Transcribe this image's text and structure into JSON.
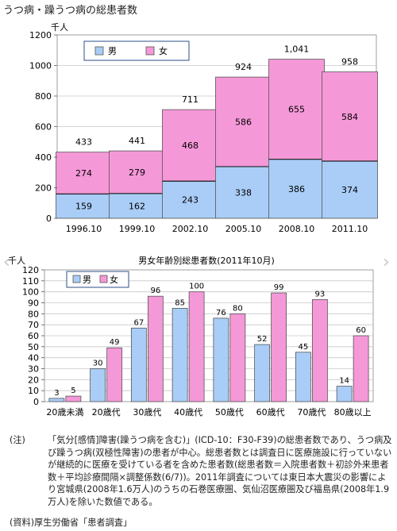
{
  "page_title": "うつ病・躁うつ病の総患者数",
  "chart_data": [
    {
      "type": "bar",
      "stacked": true,
      "title": "",
      "unit_label": "千人",
      "categories": [
        "1996.10",
        "1999.10",
        "2002.10",
        "2005.10",
        "2008.10",
        "2011.10"
      ],
      "series": [
        {
          "name": "男",
          "values": [
            159,
            162,
            243,
            338,
            386,
            374
          ],
          "color": "#a9cdf6"
        },
        {
          "name": "女",
          "values": [
            274,
            279,
            468,
            586,
            655,
            584
          ],
          "color": "#f598d8"
        }
      ],
      "totals": [
        "433",
        "441",
        "711",
        "924",
        "1,041",
        "958"
      ],
      "ylim": [
        0,
        1200
      ],
      "yticks": [
        0,
        200,
        400,
        600,
        800,
        1000,
        1200
      ],
      "grid": true,
      "legend": "top-left"
    },
    {
      "type": "bar",
      "stacked": false,
      "title": "男女年齢別総患者数(2011年10月)",
      "unit_label": "千人",
      "categories": [
        "20歳未満",
        "20歳代",
        "30歳代",
        "40歳代",
        "50歳代",
        "60歳代",
        "70歳代",
        "80歳以上"
      ],
      "series": [
        {
          "name": "男",
          "values": [
            3,
            30,
            67,
            85,
            76,
            52,
            45,
            14
          ],
          "color": "#a9cdf6"
        },
        {
          "name": "女",
          "values": [
            5,
            49,
            96,
            100,
            80,
            99,
            93,
            60
          ],
          "color": "#f598d8"
        }
      ],
      "ylim": [
        0,
        120
      ],
      "yticks": [
        0,
        10,
        20,
        30,
        40,
        50,
        60,
        70,
        80,
        90,
        100,
        110,
        120
      ],
      "grid": true,
      "legend": "top-left"
    }
  ],
  "notes": {
    "label": "(注)",
    "text": "「気分[感情]障害(躁うつ病を含む)」(ICD-10：F30-F39)の総患者数であり、うつ病及び躁うつ病(双極性障害)の患者が中心。総患者数とは調査日に医療施設に行っていないが継続的に医療を受けている者を含めた患者数(総患者数＝入院患者数＋初診外来患者数＋平均診療間隔×調整係数(6/7))。2011年調査については東日本大震災の影響により宮城県(2008年1.6万人)のうちの石巻医療圏、気仙沼医療圏及び福島県(2008年1.9万人)を除いた数値である。"
  },
  "source": {
    "label": "(資料)",
    "text": "厚生労働省「患者調査」"
  },
  "colors": {
    "male": "#a9cdf6",
    "female": "#f598d8",
    "bar_outline": "#555555",
    "grid": "#c8c8c8",
    "legend_border": "#2e4f8a"
  },
  "icons": {
    "prev": "chevron-left-icon",
    "next": "chevron-right-icon"
  }
}
